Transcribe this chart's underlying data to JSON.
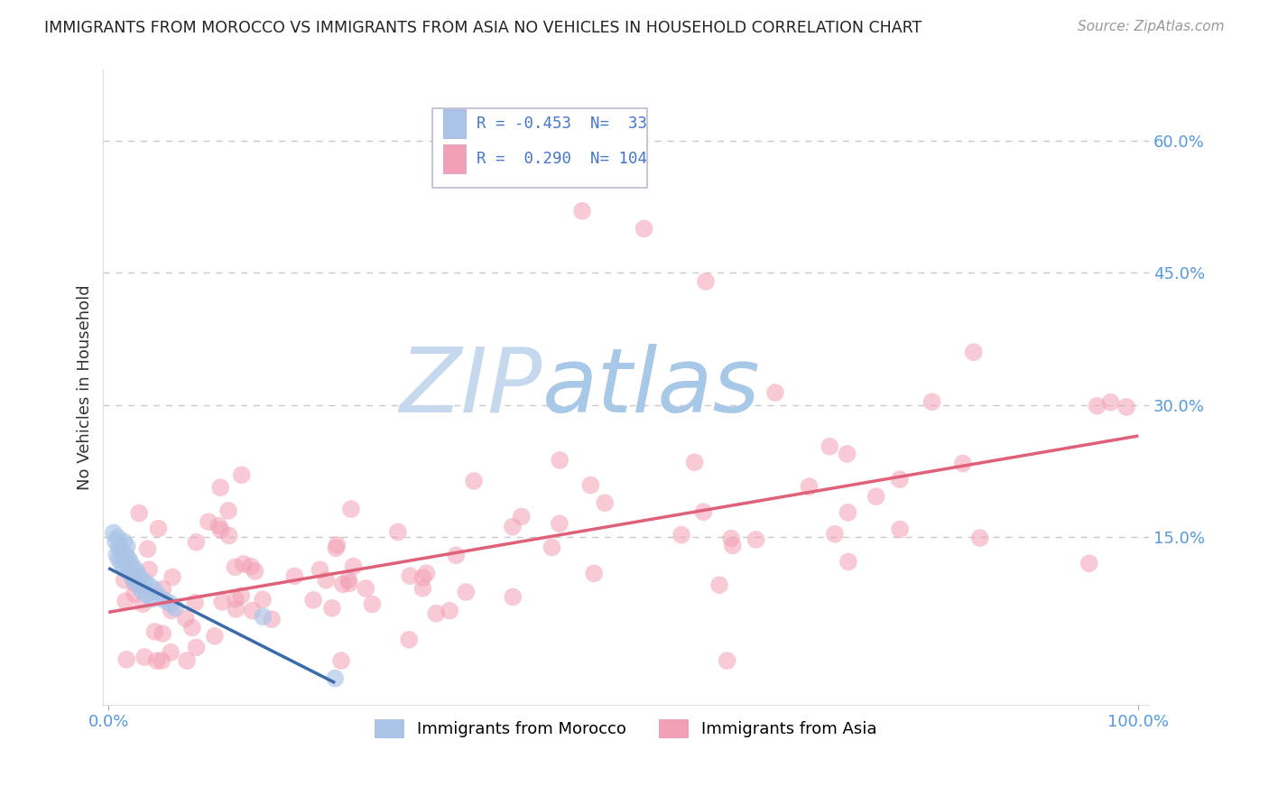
{
  "title": "IMMIGRANTS FROM MOROCCO VS IMMIGRANTS FROM ASIA NO VEHICLES IN HOUSEHOLD CORRELATION CHART",
  "source": "Source: ZipAtlas.com",
  "xlabel_morocco": "Immigrants from Morocco",
  "xlabel_asia": "Immigrants from Asia",
  "ylabel": "No Vehicles in Household",
  "morocco_R": -0.453,
  "morocco_N": 33,
  "asia_R": 0.29,
  "asia_N": 104,
  "morocco_color": "#aac4e8",
  "asia_color": "#f2a0b5",
  "morocco_line_color": "#3a6baa",
  "asia_line_color": "#e0607a",
  "watermark_ZIP_color": "#c5d8ee",
  "watermark_atlas_color": "#a8c8e8",
  "background_color": "#ffffff",
  "grid_color": "#c8c8c8",
  "title_color": "#222222",
  "legend_text_color": "#4477cc",
  "axis_tick_color": "#5599dd",
  "right_ytick_labels": [
    "15.0%",
    "30.0%",
    "45.0%",
    "60.0%"
  ],
  "right_ytick_values": [
    0.15,
    0.3,
    0.45,
    0.6
  ],
  "xlim": [
    -0.005,
    1.01
  ],
  "ylim": [
    -0.04,
    0.68
  ],
  "morocco_line_x": [
    0.0,
    0.22
  ],
  "morocco_line_y_start": 0.115,
  "morocco_line_y_end": -0.015,
  "asia_line_x": [
    0.0,
    1.0
  ],
  "asia_line_y_start": 0.065,
  "asia_line_y_end": 0.265
}
